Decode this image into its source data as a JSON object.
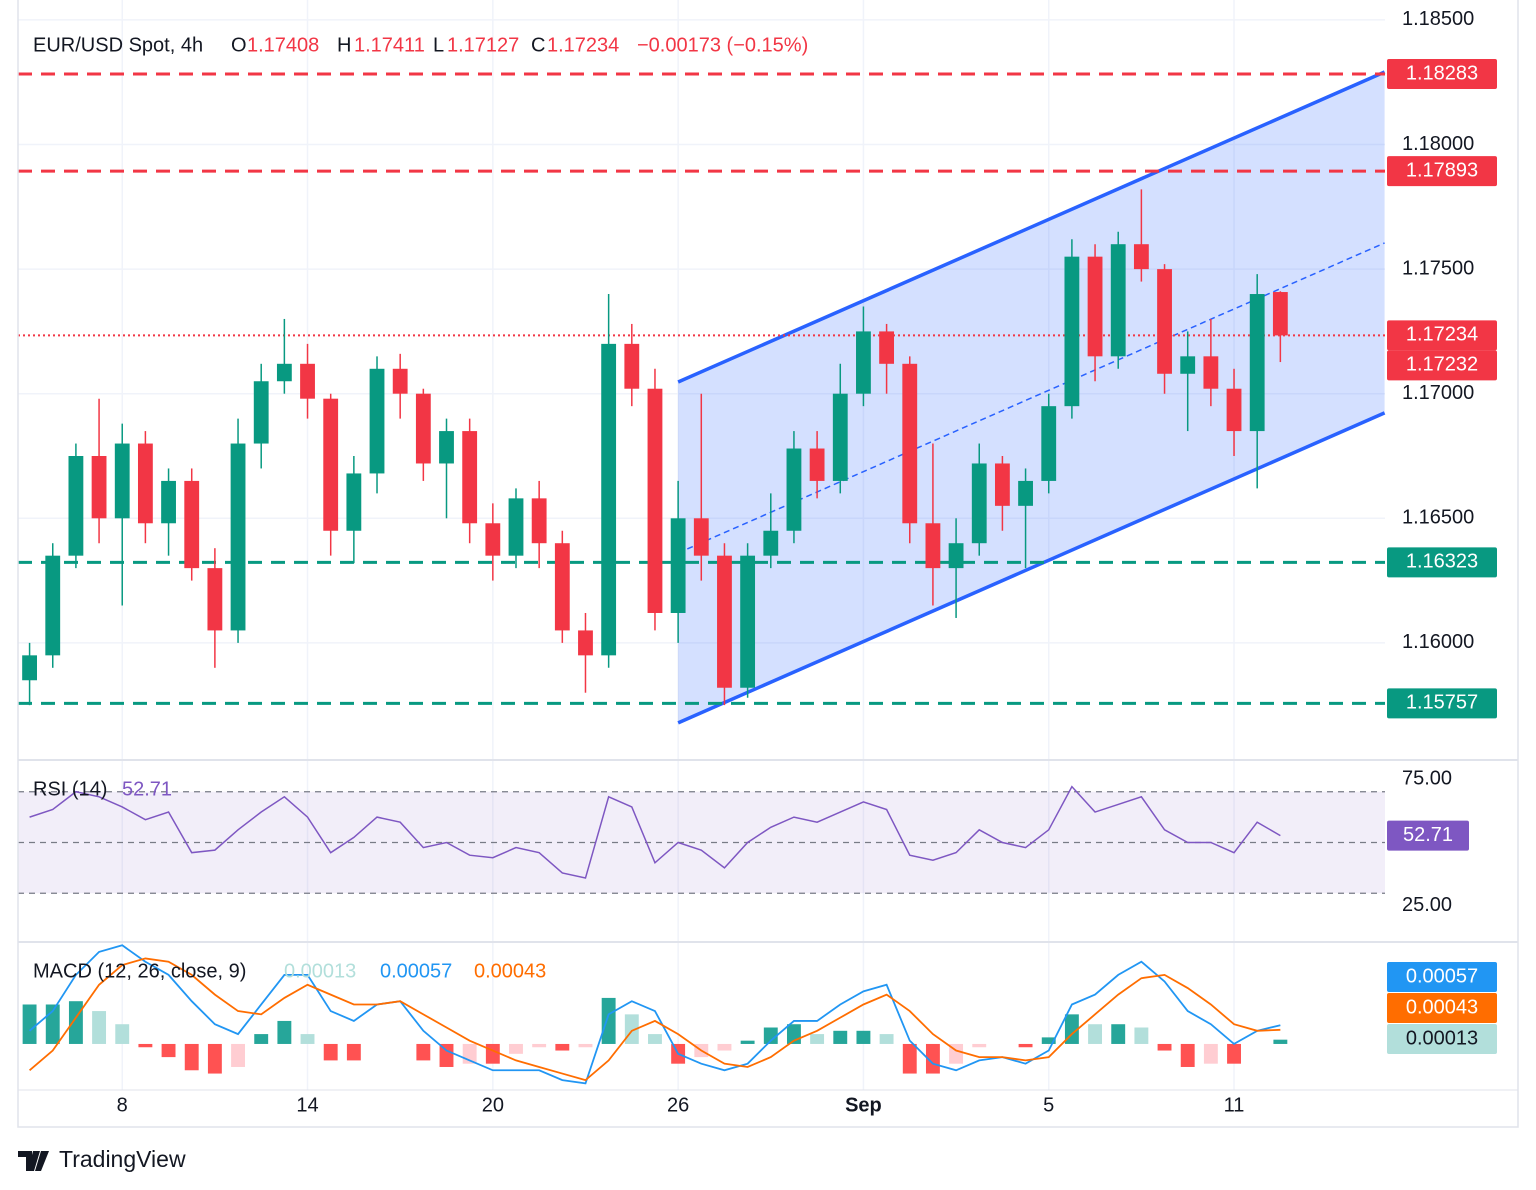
{
  "header": {
    "symbol": "EUR/USD Spot, 4h",
    "ohlc": [
      [
        "O",
        "1.17408"
      ],
      [
        "H",
        "1.17411"
      ],
      [
        "L",
        "1.17127"
      ],
      [
        "C",
        "1.17234"
      ]
    ],
    "change": "−0.00173 (−0.15%)"
  },
  "footer": {
    "brand": "TradingView"
  },
  "chart_data": [
    {
      "type": "candlestick",
      "up_color": "#089981",
      "down_color": "#f23645",
      "grid": true,
      "categories": [
        null,
        null,
        null,
        null,
        "8",
        null,
        null,
        null,
        null,
        null,
        null,
        null,
        "14",
        null,
        null,
        null,
        null,
        null,
        null,
        null,
        "20",
        null,
        null,
        null,
        null,
        null,
        null,
        null,
        "26",
        null,
        null,
        null,
        null,
        null,
        null,
        null,
        "Sep",
        null,
        null,
        null,
        null,
        null,
        null,
        null,
        "5",
        null,
        null,
        null,
        null,
        null,
        null,
        null,
        "11",
        null,
        null
      ],
      "candles": [
        [
          1.1585,
          1.16,
          1.1575,
          1.1595
        ],
        [
          1.1595,
          1.164,
          1.159,
          1.1635
        ],
        [
          1.1635,
          1.168,
          1.163,
          1.1675
        ],
        [
          1.1675,
          1.1698,
          1.164,
          1.165
        ],
        [
          1.165,
          1.1688,
          1.1615,
          1.168
        ],
        [
          1.168,
          1.1685,
          1.164,
          1.1648
        ],
        [
          1.1648,
          1.167,
          1.1635,
          1.1665
        ],
        [
          1.1665,
          1.167,
          1.1625,
          1.163
        ],
        [
          1.163,
          1.1638,
          1.159,
          1.1605
        ],
        [
          1.1605,
          1.169,
          1.16,
          1.168
        ],
        [
          1.168,
          1.1712,
          1.167,
          1.1705
        ],
        [
          1.1705,
          1.173,
          1.17,
          1.1712
        ],
        [
          1.1712,
          1.172,
          1.169,
          1.1698
        ],
        [
          1.1698,
          1.17,
          1.1635,
          1.1645
        ],
        [
          1.1645,
          1.1675,
          1.1632,
          1.1668
        ],
        [
          1.1668,
          1.1715,
          1.166,
          1.171
        ],
        [
          1.171,
          1.1716,
          1.169,
          1.17
        ],
        [
          1.17,
          1.1702,
          1.1665,
          1.1672
        ],
        [
          1.1672,
          1.169,
          1.165,
          1.1685
        ],
        [
          1.1685,
          1.169,
          1.164,
          1.1648
        ],
        [
          1.1648,
          1.1656,
          1.1625,
          1.1635
        ],
        [
          1.1635,
          1.1662,
          1.163,
          1.1658
        ],
        [
          1.1658,
          1.1665,
          1.163,
          1.164
        ],
        [
          1.164,
          1.1645,
          1.16,
          1.1605
        ],
        [
          1.1605,
          1.1612,
          1.158,
          1.1595
        ],
        [
          1.1595,
          1.174,
          1.159,
          1.172
        ],
        [
          1.172,
          1.1728,
          1.1695,
          1.1702
        ],
        [
          1.1702,
          1.171,
          1.1605,
          1.1612
        ],
        [
          1.1612,
          1.1665,
          1.16,
          1.165
        ],
        [
          1.165,
          1.17,
          1.1625,
          1.1635
        ],
        [
          1.1635,
          1.164,
          1.1575,
          1.1582
        ],
        [
          1.1582,
          1.164,
          1.1578,
          1.1635
        ],
        [
          1.1635,
          1.166,
          1.163,
          1.1645
        ],
        [
          1.1645,
          1.1685,
          1.164,
          1.1678
        ],
        [
          1.1678,
          1.1685,
          1.1658,
          1.1665
        ],
        [
          1.1665,
          1.1712,
          1.166,
          1.17
        ],
        [
          1.17,
          1.1735,
          1.1695,
          1.1725
        ],
        [
          1.1725,
          1.1728,
          1.17,
          1.1712
        ],
        [
          1.1712,
          1.1715,
          1.164,
          1.1648
        ],
        [
          1.1648,
          1.168,
          1.1615,
          1.163
        ],
        [
          1.163,
          1.165,
          1.161,
          1.164
        ],
        [
          1.164,
          1.168,
          1.1635,
          1.1672
        ],
        [
          1.1672,
          1.1675,
          1.1645,
          1.1655
        ],
        [
          1.1655,
          1.167,
          1.163,
          1.1665
        ],
        [
          1.1665,
          1.17,
          1.166,
          1.1695
        ],
        [
          1.1695,
          1.1762,
          1.169,
          1.1755
        ],
        [
          1.1755,
          1.176,
          1.1705,
          1.1715
        ],
        [
          1.1715,
          1.1765,
          1.171,
          1.176
        ],
        [
          1.176,
          1.1782,
          1.1745,
          1.175
        ],
        [
          1.175,
          1.1752,
          1.17,
          1.1708
        ],
        [
          1.1708,
          1.1725,
          1.1685,
          1.1715
        ],
        [
          1.1715,
          1.173,
          1.1695,
          1.1702
        ],
        [
          1.1702,
          1.171,
          1.1675,
          1.1685
        ],
        [
          1.1685,
          1.1748,
          1.1662,
          1.174
        ],
        [
          1.17408,
          1.17411,
          1.17127,
          1.17234
        ]
      ],
      "ylim": [
        1.1553,
        1.1858
      ],
      "yticks": [
        {
          "value": 1.185,
          "label": "1.18500"
        },
        {
          "value": 1.18,
          "label": "1.18000"
        },
        {
          "value": 1.175,
          "label": "1.17500"
        },
        {
          "value": 1.17,
          "label": "1.17000"
        },
        {
          "value": 1.165,
          "label": "1.16500"
        },
        {
          "value": 1.16,
          "label": "1.16000"
        }
      ],
      "levels": [
        {
          "value": 1.18283,
          "color": "#f23645",
          "style": "dashed"
        },
        {
          "value": 1.17893,
          "color": "#f23645",
          "style": "dashed"
        },
        {
          "value": 1.17234,
          "color": "#f23645",
          "style": "dotted"
        },
        {
          "value": 1.17232,
          "color": "#f23645",
          "style": "none"
        },
        {
          "value": 1.16323,
          "color": "#089981",
          "style": "dashed"
        },
        {
          "value": 1.15757,
          "color": "#089981",
          "style": "dashed"
        }
      ],
      "channel": {
        "x": [
          28,
          58.5
        ],
        "upper": [
          1.17047,
          1.18291
        ],
        "middle": [
          1.16361,
          1.17605
        ],
        "lower": [
          1.15679,
          1.16923
        ],
        "color": "#2962ff"
      }
    },
    {
      "type": "line",
      "label": "RSI (14)",
      "color": "#7e57c2",
      "ylim": [
        10.8,
        82.5
      ],
      "yticks": [
        {
          "value": 75,
          "label": "75.00"
        },
        {
          "value": 25,
          "label": "25.00"
        }
      ],
      "band": [
        30,
        70
      ],
      "middle": 50,
      "values": [
        60,
        63,
        70,
        68,
        64,
        59,
        62,
        46,
        47,
        55,
        62,
        68,
        60,
        46,
        52,
        60,
        58,
        48,
        50,
        45,
        44,
        48,
        46,
        38,
        36,
        68,
        64,
        42,
        50,
        47,
        40,
        50,
        56,
        60,
        58,
        62,
        66,
        63,
        45,
        43,
        46,
        55,
        50,
        48,
        55,
        72,
        62,
        65,
        68,
        55,
        50,
        50,
        46,
        58,
        52.71
      ]
    },
    {
      "type": "macd",
      "label": "MACD (12, 26, close, 9)",
      "ylim": [
        -0.0014,
        0.0031
      ],
      "series": [
        {
          "type": "bar",
          "color": "#b2dfdb",
          "colors": [
            "#26a69a",
            "#b2dfdb",
            "#ff5252",
            "#ffcdd2"
          ],
          "values": [
            0.0012,
            0.0012,
            0.0013,
            0.001,
            0.0006,
            -0.0001,
            -0.0004,
            -0.0008,
            -0.0009,
            -0.0007,
            0.0003,
            0.0007,
            0.0003,
            -0.0005,
            -0.0005,
            0,
            0,
            -0.0005,
            -0.0007,
            -0.0006,
            -0.0006,
            -0.0003,
            -0.0001,
            -0.0002,
            -0.0001,
            0.0014,
            0.0009,
            0.0003,
            -0.0006,
            -0.0004,
            -0.0002,
            0.0001,
            0.0005,
            0.0006,
            0.0003,
            0.0004,
            0.0004,
            0.0003,
            -0.0009,
            -0.0009,
            -0.0006,
            -0.0001,
            0,
            -0.0001,
            0.0002,
            0.0009,
            0.0006,
            0.0006,
            0.0005,
            -0.0002,
            -0.0007,
            -0.0006,
            -0.0006,
            0,
            0.00013
          ]
        },
        {
          "type": "line",
          "color": "#2196f3",
          "values": [
            0.0004,
            0.001,
            0.0021,
            0.0028,
            0.003,
            0.0025,
            0.0021,
            0.0013,
            0.0006,
            0.0003,
            0.0012,
            0.0021,
            0.0021,
            0.001,
            0.0007,
            0.0012,
            0.0013,
            0.0004,
            -0.0002,
            -0.0005,
            -0.0008,
            -0.0008,
            -0.0008,
            -0.0011,
            -0.0012,
            0.0009,
            0.0013,
            0.001,
            -0.0003,
            -0.0006,
            -0.0008,
            -0.0006,
            0.0001,
            0.0007,
            0.0007,
            0.0012,
            0.0016,
            0.0018,
            0.0001,
            -0.0006,
            -0.0008,
            -0.0005,
            -0.0004,
            -0.0006,
            -0.0002,
            0.0012,
            0.0015,
            0.0021,
            0.0025,
            0.0019,
            0.001,
            0.0006,
            0,
            0.0004,
            0.00057
          ]
        },
        {
          "type": "line",
          "color": "#ff6d00",
          "values": [
            -0.0008,
            -0.0002,
            0.0008,
            0.0018,
            0.0024,
            0.0026,
            0.0025,
            0.0021,
            0.0015,
            0.001,
            0.0009,
            0.0014,
            0.0018,
            0.0015,
            0.0012,
            0.0012,
            0.0013,
            0.0009,
            0.0005,
            0.0001,
            -0.0002,
            -0.0005,
            -0.0007,
            -0.0009,
            -0.0011,
            -0.0005,
            0.0004,
            0.0007,
            0.0003,
            -0.0002,
            -0.0006,
            -0.0007,
            -0.0004,
            0.0001,
            0.0004,
            0.0008,
            0.0012,
            0.0015,
            0.001,
            0.0003,
            -0.0002,
            -0.0004,
            -0.0004,
            -0.0005,
            -0.0004,
            0.0003,
            0.0009,
            0.0015,
            0.002,
            0.0021,
            0.0017,
            0.0012,
            0.0006,
            0.0004,
            0.00043
          ]
        }
      ]
    }
  ]
}
